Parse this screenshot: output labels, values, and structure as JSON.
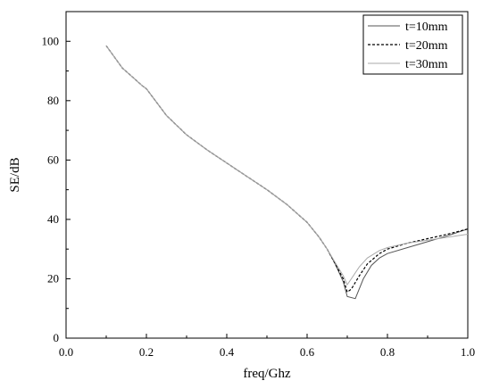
{
  "chart_data": {
    "type": "line",
    "title": "",
    "xlabel": "freq/Ghz",
    "ylabel": "SE/dB",
    "xlim": [
      0.0,
      1.0
    ],
    "ylim": [
      0,
      110
    ],
    "x_ticks": [
      "0.0",
      "0.2",
      "0.4",
      "0.6",
      "0.8",
      "1.0"
    ],
    "y_ticks": [
      "0",
      "20",
      "40",
      "60",
      "80",
      "100"
    ],
    "grid": false,
    "legend_position": "top-right",
    "series": [
      {
        "name": "t=10mm",
        "color": "#555555",
        "dash": "solid",
        "x": [
          0.1,
          0.14,
          0.19,
          0.2,
          0.25,
          0.3,
          0.35,
          0.4,
          0.45,
          0.5,
          0.55,
          0.6,
          0.63,
          0.65,
          0.67,
          0.69,
          0.7,
          0.72,
          0.74,
          0.76,
          0.78,
          0.8,
          0.85,
          0.9,
          0.95,
          1.0
        ],
        "y": [
          98.5,
          91.0,
          85.0,
          84.0,
          75.0,
          68.5,
          63.5,
          59.0,
          54.5,
          50.0,
          45.0,
          39.0,
          34.0,
          30.0,
          25.0,
          19.0,
          14.0,
          13.3,
          20.0,
          24.5,
          27.0,
          28.5,
          30.5,
          32.5,
          34.5,
          36.8
        ]
      },
      {
        "name": "t=20mm",
        "color": "#000000",
        "dash": "dashed",
        "x": [
          0.1,
          0.14,
          0.19,
          0.2,
          0.25,
          0.3,
          0.35,
          0.4,
          0.45,
          0.5,
          0.55,
          0.6,
          0.63,
          0.65,
          0.67,
          0.69,
          0.7,
          0.71,
          0.73,
          0.75,
          0.78,
          0.8,
          0.85,
          0.9,
          0.95,
          1.0
        ],
        "y": [
          98.5,
          91.0,
          85.0,
          84.0,
          75.0,
          68.5,
          63.5,
          59.0,
          54.5,
          50.0,
          45.0,
          39.0,
          34.0,
          30.0,
          25.0,
          20.0,
          15.5,
          16.5,
          21.0,
          25.0,
          28.5,
          30.0,
          32.0,
          33.5,
          35.0,
          36.8
        ]
      },
      {
        "name": "t=30mm",
        "color": "#aaaaaa",
        "dash": "solid",
        "x": [
          0.1,
          0.14,
          0.19,
          0.2,
          0.25,
          0.3,
          0.35,
          0.4,
          0.45,
          0.5,
          0.55,
          0.6,
          0.63,
          0.65,
          0.67,
          0.69,
          0.7,
          0.71,
          0.73,
          0.75,
          0.78,
          0.8,
          0.85,
          0.9,
          0.95,
          1.0
        ],
        "y": [
          98.5,
          91.0,
          85.0,
          84.0,
          75.0,
          68.5,
          63.5,
          59.0,
          54.5,
          50.0,
          45.0,
          39.0,
          34.0,
          30.0,
          25.5,
          21.0,
          18.0,
          20.0,
          24.0,
          27.0,
          29.5,
          30.5,
          32.0,
          33.0,
          34.0,
          35.0
        ]
      }
    ]
  }
}
